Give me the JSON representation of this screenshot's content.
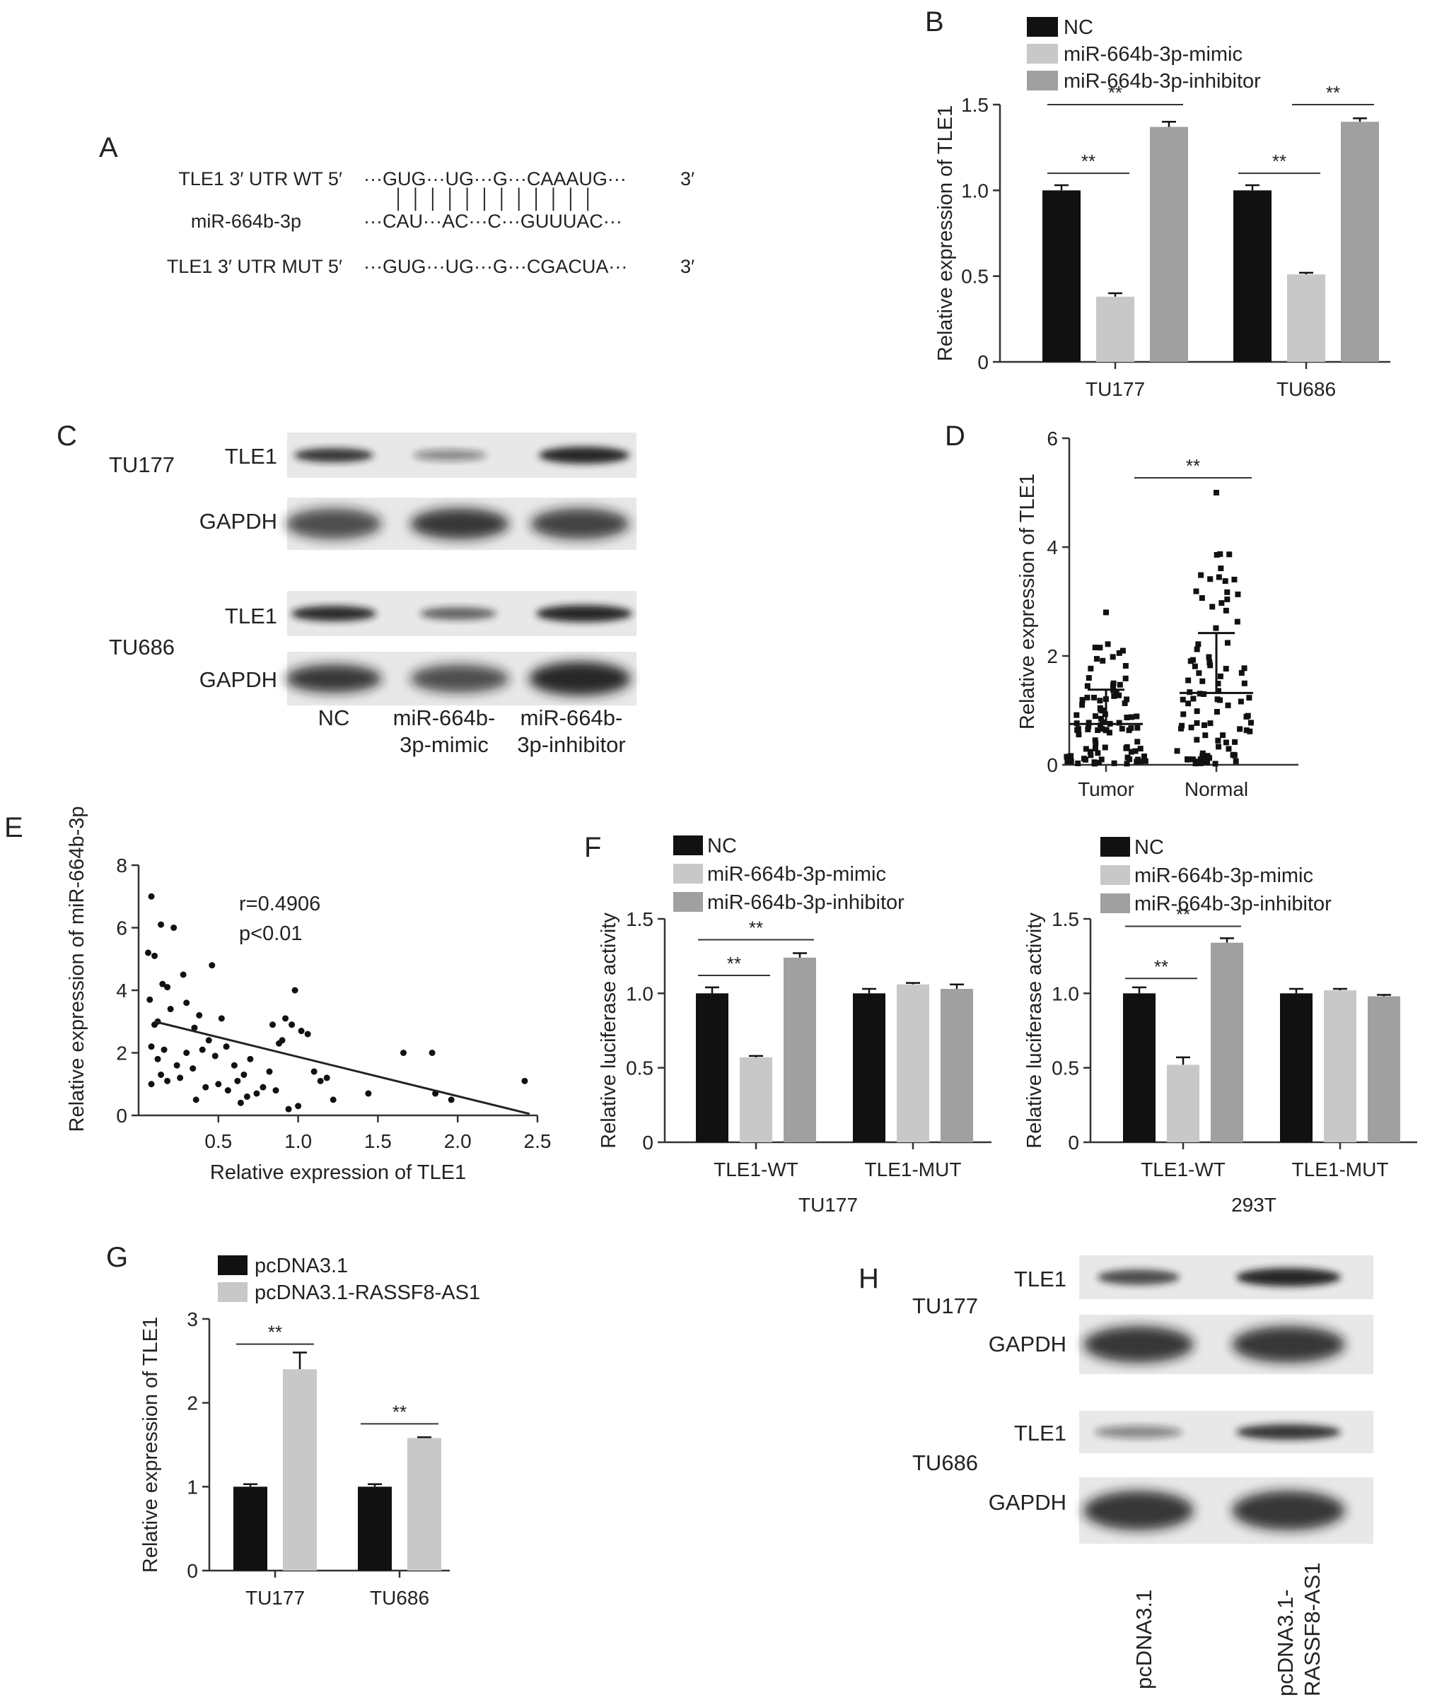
{
  "colors": {
    "black": "#111111",
    "light_gray": "#c8c8c8",
    "mid_gray": "#a0a0a0",
    "axis": "#333333"
  },
  "panel_labels": [
    "A",
    "B",
    "C",
    "D",
    "E",
    "F",
    "G",
    "H"
  ],
  "panel_a": {
    "rows": [
      {
        "label": "TLE1 3′ UTR WT 5′",
        "seq": "···GUG···UG···G···CAAAUG···",
        "end": "3′"
      },
      {
        "label": "miR-664b-3p",
        "seq": "···CAU···AC···C···GUUUAC···",
        "end": ""
      },
      {
        "label": "TLE1 3′ UTR MUT 5′",
        "seq": "···GUG···UG···G···CGACUA···",
        "end": "3′"
      }
    ],
    "pairing_marks": "│ │ │      │ │      │       │ │ │ │ │ │"
  },
  "legend_three": [
    "NC",
    "miR-664b-3p-mimic",
    "miR-664b-3p-inhibitor"
  ],
  "legend_two": [
    "pcDNA3.1",
    "pcDNA3.1-RASSF8-AS1"
  ],
  "sig_label": "**",
  "chart_data": [
    {
      "panel": "B",
      "type": "bar",
      "ylabel": "Relative expression of TLE1",
      "categories": [
        "TU177",
        "TU686"
      ],
      "ylim": [
        0,
        1.5
      ],
      "yticks": [
        "0",
        "0.5",
        "1.0",
        "1.5"
      ],
      "series": [
        {
          "name": "NC",
          "values": [
            1.0,
            1.0
          ],
          "errors": [
            0.03,
            0.03
          ]
        },
        {
          "name": "miR-664b-3p-mimic",
          "values": [
            0.38,
            0.51
          ],
          "errors": [
            0.02,
            0.01
          ]
        },
        {
          "name": "miR-664b-3p-inhibitor",
          "values": [
            1.37,
            1.4
          ],
          "errors": [
            0.03,
            0.02
          ]
        }
      ]
    },
    {
      "panel": "D",
      "type": "scatter",
      "ylabel": "Relative expression of TLE1",
      "categories": [
        "Tumor",
        "Normal"
      ],
      "ylim": [
        0,
        6
      ],
      "yticks": [
        "0",
        "2",
        "4",
        "6"
      ],
      "summary": [
        {
          "group": "Tumor",
          "mean": 0.75,
          "sd_upper": 1.38
        },
        {
          "group": "Normal",
          "mean": 1.32,
          "sd_upper": 2.42
        }
      ]
    },
    {
      "panel": "E",
      "type": "scatter",
      "xlabel": "Relative expression of TLE1",
      "ylabel": "Relative expression of miR-664b-3p",
      "xlim": [
        0,
        2.5
      ],
      "ylim": [
        0,
        8
      ],
      "xticks": [
        "0.5",
        "1.0",
        "1.5",
        "2.0",
        "2.5"
      ],
      "yticks": [
        "0",
        "2",
        "4",
        "6",
        "8"
      ],
      "annotation": [
        "r=0.4906",
        "p<0.01"
      ],
      "fit_line": {
        "x": [
          0.1,
          2.45
        ],
        "y": [
          3.0,
          0.05
        ]
      },
      "points": [
        [
          0.08,
          7.0
        ],
        [
          0.06,
          5.2
        ],
        [
          0.1,
          5.1
        ],
        [
          0.14,
          6.1
        ],
        [
          0.22,
          6.0
        ],
        [
          0.07,
          3.7
        ],
        [
          0.15,
          4.2
        ],
        [
          0.18,
          4.1
        ],
        [
          0.28,
          4.5
        ],
        [
          0.46,
          4.8
        ],
        [
          0.1,
          2.9
        ],
        [
          0.12,
          3.0
        ],
        [
          0.2,
          3.4
        ],
        [
          0.3,
          3.6
        ],
        [
          0.35,
          2.8
        ],
        [
          0.38,
          3.2
        ],
        [
          0.44,
          2.4
        ],
        [
          0.52,
          3.1
        ],
        [
          0.08,
          2.2
        ],
        [
          0.12,
          1.8
        ],
        [
          0.16,
          2.1
        ],
        [
          0.24,
          1.6
        ],
        [
          0.3,
          2.0
        ],
        [
          0.34,
          1.5
        ],
        [
          0.4,
          2.1
        ],
        [
          0.48,
          1.9
        ],
        [
          0.55,
          2.2
        ],
        [
          0.6,
          1.6
        ],
        [
          0.66,
          1.3
        ],
        [
          0.7,
          1.8
        ],
        [
          0.08,
          1.0
        ],
        [
          0.14,
          1.3
        ],
        [
          0.18,
          1.1
        ],
        [
          0.26,
          1.2
        ],
        [
          0.42,
          0.9
        ],
        [
          0.5,
          1.0
        ],
        [
          0.56,
          0.8
        ],
        [
          0.62,
          1.1
        ],
        [
          0.68,
          0.6
        ],
        [
          0.74,
          0.7
        ],
        [
          0.78,
          0.9
        ],
        [
          0.82,
          1.4
        ],
        [
          0.86,
          0.8
        ],
        [
          0.9,
          2.4
        ],
        [
          0.92,
          3.1
        ],
        [
          0.96,
          2.9
        ],
        [
          0.98,
          4.0
        ],
        [
          1.02,
          2.7
        ],
        [
          1.06,
          2.6
        ],
        [
          1.1,
          1.4
        ],
        [
          1.14,
          1.1
        ],
        [
          1.18,
          1.2
        ],
        [
          1.22,
          0.5
        ],
        [
          0.88,
          2.3
        ],
        [
          0.84,
          2.9
        ],
        [
          0.94,
          0.2
        ],
        [
          1.0,
          0.3
        ],
        [
          0.36,
          0.5
        ],
        [
          0.64,
          0.4
        ],
        [
          1.44,
          0.7
        ],
        [
          1.66,
          2.0
        ],
        [
          1.84,
          2.0
        ],
        [
          1.86,
          0.7
        ],
        [
          1.96,
          0.5
        ],
        [
          2.42,
          1.1
        ]
      ]
    },
    {
      "panel": "F-left",
      "type": "bar",
      "ylabel": "Relative luciferase activity",
      "xlabel": "TU177",
      "categories": [
        "TLE1-WT",
        "TLE1-MUT"
      ],
      "ylim": [
        0,
        1.5
      ],
      "yticks": [
        "0",
        "0.5",
        "1.0",
        "1.5"
      ],
      "series": [
        {
          "name": "NC",
          "values": [
            1.0,
            1.0
          ],
          "errors": [
            0.04,
            0.03
          ]
        },
        {
          "name": "miR-664b-3p-mimic",
          "values": [
            0.57,
            1.06
          ],
          "errors": [
            0.01,
            0.01
          ]
        },
        {
          "name": "miR-664b-3p-inhibitor",
          "values": [
            1.24,
            1.03
          ],
          "errors": [
            0.03,
            0.03
          ]
        }
      ]
    },
    {
      "panel": "F-right",
      "type": "bar",
      "ylabel": "Relative luciferase activity",
      "xlabel": "293T",
      "categories": [
        "TLE1-WT",
        "TLE1-MUT"
      ],
      "ylim": [
        0,
        1.5
      ],
      "yticks": [
        "0",
        "0.5",
        "1.0",
        "1.5"
      ],
      "series": [
        {
          "name": "NC",
          "values": [
            1.0,
            1.0
          ],
          "errors": [
            0.04,
            0.03
          ]
        },
        {
          "name": "miR-664b-3p-mimic",
          "values": [
            0.52,
            1.02
          ],
          "errors": [
            0.05,
            0.01
          ]
        },
        {
          "name": "miR-664b-3p-inhibitor",
          "values": [
            1.34,
            0.98
          ],
          "errors": [
            0.03,
            0.01
          ]
        }
      ]
    },
    {
      "panel": "G",
      "type": "bar",
      "ylabel": "Relative expression of TLE1",
      "categories": [
        "TU177",
        "TU686"
      ],
      "ylim": [
        0,
        3
      ],
      "yticks": [
        "0",
        "1",
        "2",
        "3"
      ],
      "series": [
        {
          "name": "pcDNA3.1",
          "values": [
            1.0,
            1.0
          ],
          "errors": [
            0.03,
            0.03
          ]
        },
        {
          "name": "pcDNA3.1-RASSF8-AS1",
          "values": [
            2.4,
            1.58
          ],
          "errors": [
            0.2,
            0.01
          ]
        }
      ]
    }
  ],
  "panel_c": {
    "cell_lines": [
      "TU177",
      "TU686"
    ],
    "bands": [
      "TLE1",
      "GAPDH"
    ],
    "lanes": [
      "NC",
      "miR-664b-\n3p-mimic",
      "miR-664b-\n3p-inhibitor"
    ],
    "lane_line1": [
      "NC",
      "miR-664b-",
      "miR-664b-"
    ],
    "lane_line2": [
      "",
      "3p-mimic",
      "3p-inhibitor"
    ]
  },
  "panel_h": {
    "cell_lines": [
      "TU177",
      "TU686"
    ],
    "bands": [
      "TLE1",
      "GAPDH"
    ],
    "lane_line1": [
      "pcDNA3.1",
      "pcDNA3.1-"
    ],
    "lane_line2": [
      "",
      "RASSF8-AS1"
    ]
  }
}
